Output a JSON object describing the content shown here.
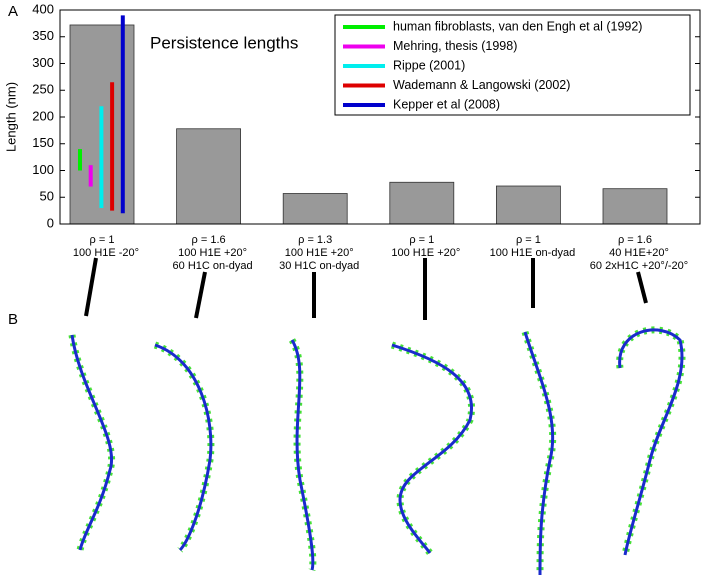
{
  "chart_data": {
    "type": "bar",
    "title": "Persistence lengths",
    "ylabel": "Length (nm)",
    "panel_labels": [
      "A",
      "B"
    ],
    "categories": [
      [
        "ρ = 1",
        "100 H1E -20°"
      ],
      [
        "ρ = 1.6",
        "100 H1E +20°",
        "60 H1C on-dyad"
      ],
      [
        "ρ = 1.3",
        "100 H1E +20°",
        "30 H1C on-dyad"
      ],
      [
        "ρ = 1",
        "100 H1E +20°"
      ],
      [
        "ρ = 1",
        "100 H1E on-dyad"
      ],
      [
        "ρ = 1.6",
        "40 H1E+20°",
        "60 2xH1C +20°/-20°"
      ]
    ],
    "values": [
      372,
      178,
      57,
      78,
      71,
      66
    ],
    "color": "#999999",
    "ranges": [
      {
        "name": "human fibroblasts, van den Engh et al (1992)",
        "color": "#00ee00",
        "low": 100,
        "high": 140
      },
      {
        "name": "Mehring, thesis (1998)",
        "color": "#ee00ee",
        "low": 70,
        "high": 110
      },
      {
        "name": "Rippe (2001)",
        "color": "#00eeee",
        "low": 30,
        "high": 220
      },
      {
        "name": "Wademann & Langowski (2002)",
        "color": "#dd0000",
        "low": 25,
        "high": 265
      },
      {
        "name": "Kepper et al (2008)",
        "color": "#0000cc",
        "low": 20,
        "high": 390
      }
    ],
    "ylim": [
      0,
      400
    ],
    "yticks": [
      0,
      50,
      100,
      150,
      200,
      250,
      300,
      350,
      400
    ],
    "legend": "upper right"
  }
}
